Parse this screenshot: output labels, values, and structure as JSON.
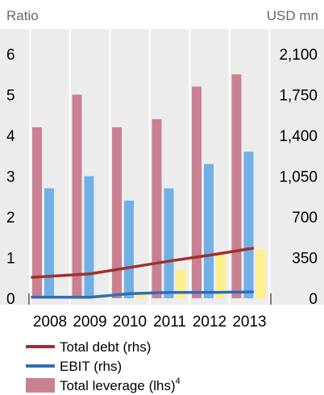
{
  "chart_data": {
    "type": "bar",
    "categories": [
      "2008",
      "2009",
      "2010",
      "2011",
      "2012",
      "2013"
    ],
    "left_axis": {
      "unit_label": "Ratio",
      "ylim": [
        0,
        7
      ],
      "ticks": [
        "0",
        "1",
        "2",
        "3",
        "4",
        "5",
        "6"
      ]
    },
    "right_axis": {
      "unit_label": "USD mn",
      "ylim": [
        0,
        2450
      ],
      "ticks": [
        "0",
        "350",
        "700",
        "1,050",
        "1,400",
        "1,750",
        "2,100"
      ]
    },
    "grid": "vertical lines between categories",
    "legend_position": "bottom",
    "series": [
      {
        "name": "Total debt (rhs)",
        "type": "line",
        "axis": "right",
        "color": "#a0302e",
        "values": [
          180,
          210,
          265,
          320,
          370,
          430
        ]
      },
      {
        "name": "EBIT (rhs)",
        "type": "line",
        "axis": "right",
        "color": "#2e6db4",
        "values": [
          10,
          8,
          40,
          50,
          50,
          55
        ]
      },
      {
        "name": "Total leverage (lhs)",
        "legend_superscript": "4",
        "type": "bar",
        "axis": "left",
        "color": "#c98090",
        "values": [
          4.2,
          5.0,
          4.2,
          4.4,
          5.2,
          5.5
        ]
      },
      {
        "name": "",
        "type": "bar",
        "axis": "left",
        "color": "#70b0e6",
        "values": [
          2.7,
          3.0,
          2.4,
          2.7,
          3.3,
          3.6
        ]
      },
      {
        "name": "",
        "type": "bar",
        "axis": "left",
        "color": "#ffef8a",
        "values": [
          0.05,
          0.1,
          0.1,
          0.7,
          1.1,
          1.2
        ]
      }
    ]
  }
}
